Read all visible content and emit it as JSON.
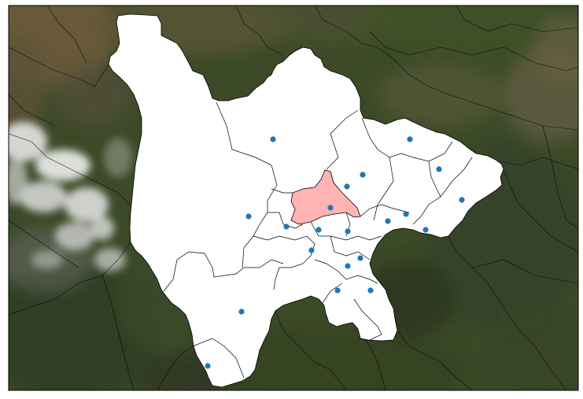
{
  "map": {
    "basemap": "satellite",
    "colors": {
      "basemap_base": "#3c4a28",
      "region_fill": "#ffffff",
      "highlight_fill": "#ffb3b3",
      "marker": "#1f77b4",
      "border": "#000000"
    },
    "marker_shape": "circle"
  }
}
